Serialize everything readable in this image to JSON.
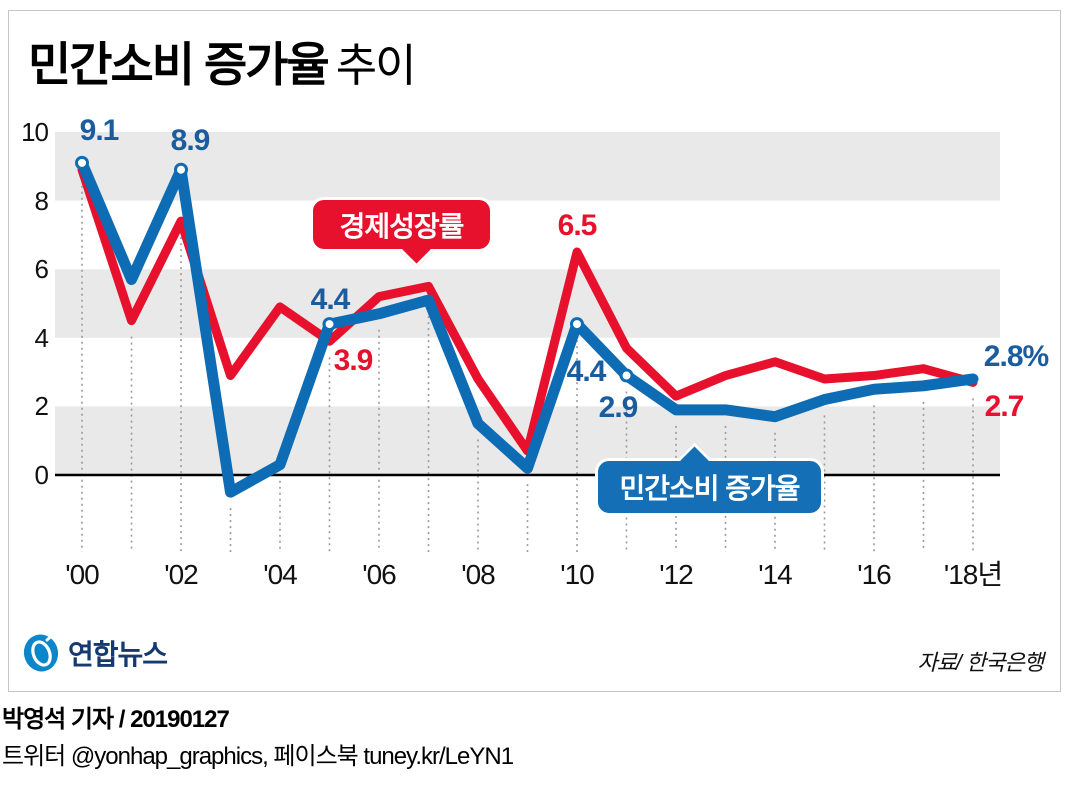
{
  "header": {
    "title_bold": "민간소비 증가율",
    "title_light": "추이"
  },
  "chart_data": {
    "type": "line",
    "title": "민간소비 증가율 추이",
    "x": [
      2000,
      2001,
      2002,
      2003,
      2004,
      2005,
      2006,
      2007,
      2008,
      2009,
      2010,
      2011,
      2012,
      2013,
      2014,
      2015,
      2016,
      2017,
      2018
    ],
    "x_tick_years": [
      2000,
      2002,
      2004,
      2006,
      2008,
      2010,
      2012,
      2014,
      2016,
      2018
    ],
    "x_tick_labels": [
      "'00",
      "'02",
      "'04",
      "'06",
      "'08",
      "'10",
      "'12",
      "'14",
      "'16",
      "'18년"
    ],
    "y_ticks": [
      0,
      2,
      4,
      6,
      8,
      10
    ],
    "ylim": [
      -1.5,
      10
    ],
    "band_ranges": [
      [
        0,
        2
      ],
      [
        4,
        6
      ],
      [
        8,
        10
      ]
    ],
    "grid": "vertical-dotted-per-year",
    "legend_position": "callouts-on-chart",
    "series": [
      {
        "name": "경제성장률",
        "color": "#e8112d",
        "values": [
          8.9,
          4.5,
          7.4,
          2.9,
          4.9,
          3.9,
          5.2,
          5.5,
          2.8,
          0.7,
          6.5,
          3.7,
          2.3,
          2.9,
          3.3,
          2.8,
          2.9,
          3.1,
          2.7
        ]
      },
      {
        "name": "민간소비 증가율",
        "color": "#0e6cb5",
        "values": [
          9.1,
          5.7,
          8.9,
          -0.5,
          0.3,
          4.4,
          4.7,
          5.1,
          1.5,
          0.2,
          4.4,
          2.9,
          1.9,
          1.9,
          1.7,
          2.2,
          2.5,
          2.6,
          2.8
        ],
        "marker_years": [
          2000,
          2002,
          2005,
          2010,
          2011
        ]
      }
    ],
    "annotations": [
      {
        "series": "민간소비 증가율",
        "year": 2000,
        "text": "9.1"
      },
      {
        "series": "민간소비 증가율",
        "year": 2002,
        "text": "8.9"
      },
      {
        "series": "민간소비 증가율",
        "year": 2005,
        "text": "4.4"
      },
      {
        "series": "경제성장률",
        "year": 2005,
        "text": "3.9"
      },
      {
        "series": "경제성장률",
        "year": 2010,
        "text": "6.5"
      },
      {
        "series": "민간소비 증가율",
        "year": 2010,
        "text": "4.4"
      },
      {
        "series": "민간소비 증가율",
        "year": 2011,
        "text": "2.9"
      },
      {
        "series": "민간소비 증가율",
        "year": 2018,
        "text": "2.8%"
      },
      {
        "series": "경제성장률",
        "year": 2018,
        "text": "2.7"
      }
    ],
    "callouts": [
      {
        "text": "경제성장률",
        "color": "#e8112d"
      },
      {
        "text": "민간소비 증가율",
        "color": "#146fb6"
      }
    ],
    "colors": {
      "band": "#e9e9e9",
      "grid_dots": "#9a9a9a",
      "axis": "#000000"
    }
  },
  "footer": {
    "logo_icon": "yonhap-logo",
    "logo_text": "연합뉴스",
    "source": "자료/ 한국은행"
  },
  "credits": {
    "byline": "박영석 기자 / 20190127",
    "social": "트위터 @yonhap_graphics, 페이스북 tuney.kr/LeYN1"
  }
}
